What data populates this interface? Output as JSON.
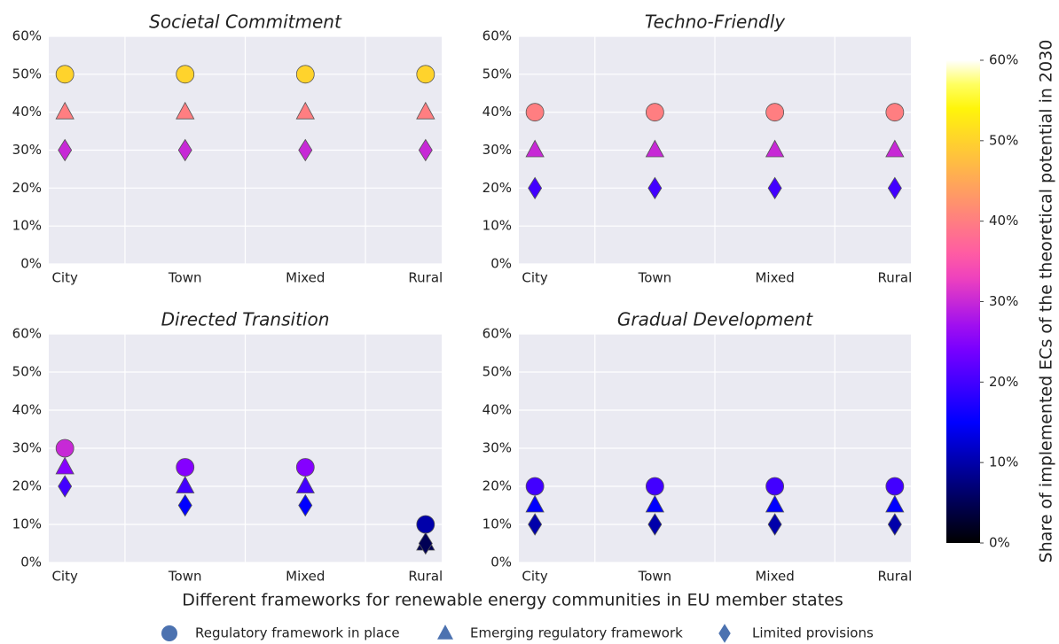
{
  "figure": {
    "xlabel": "Different frameworks for renewable energy communities in EU member states",
    "legend": {
      "color": "#4c72b0"
    },
    "colorbar": {
      "label": "Share of implemented ECs of the theoretical potential in 2030",
      "colormap": "gnuplot2",
      "lim": [
        0,
        60
      ],
      "ticks": [
        {
          "value": 0,
          "label": "0%"
        },
        {
          "value": 10,
          "label": "10%"
        },
        {
          "value": 20,
          "label": "20%"
        },
        {
          "value": 30,
          "label": "30%"
        },
        {
          "value": 40,
          "label": "40%"
        },
        {
          "value": 50,
          "label": "50%"
        },
        {
          "value": 60,
          "label": "60%"
        }
      ]
    }
  },
  "chart_data": [
    {
      "type": "scatter",
      "title": "Societal Commitment",
      "categories": [
        "City",
        "Town",
        "Mixed",
        "Rural"
      ],
      "series": [
        {
          "name": "Regulatory framework in place",
          "marker": "circle",
          "values": [
            50,
            50,
            50,
            50
          ]
        },
        {
          "name": "Emerging regulatory framework",
          "marker": "triangle",
          "values": [
            40,
            40,
            40,
            40
          ]
        },
        {
          "name": "Limited provisions",
          "marker": "diamond",
          "values": [
            30,
            30,
            30,
            30
          ]
        }
      ],
      "ylim": [
        0,
        60
      ],
      "grid": true,
      "yticks": [
        {
          "value": 0,
          "label": "0%"
        },
        {
          "value": 10,
          "label": "10%"
        },
        {
          "value": 20,
          "label": "20%"
        },
        {
          "value": 30,
          "label": "30%"
        },
        {
          "value": 40,
          "label": "40%"
        },
        {
          "value": 50,
          "label": "50%"
        },
        {
          "value": 60,
          "label": "60%"
        }
      ]
    },
    {
      "type": "scatter",
      "title": "Techno-Friendly",
      "categories": [
        "City",
        "Town",
        "Mixed",
        "Rural"
      ],
      "series": [
        {
          "name": "Regulatory framework in place",
          "marker": "circle",
          "values": [
            40,
            40,
            40,
            40
          ]
        },
        {
          "name": "Emerging regulatory framework",
          "marker": "triangle",
          "values": [
            30,
            30,
            30,
            30
          ]
        },
        {
          "name": "Limited provisions",
          "marker": "diamond",
          "values": [
            20,
            20,
            20,
            20
          ]
        }
      ],
      "ylim": [
        0,
        60
      ],
      "grid": true,
      "yticks": [
        {
          "value": 0,
          "label": "0%"
        },
        {
          "value": 10,
          "label": "10%"
        },
        {
          "value": 20,
          "label": "20%"
        },
        {
          "value": 30,
          "label": "30%"
        },
        {
          "value": 40,
          "label": "40%"
        },
        {
          "value": 50,
          "label": "50%"
        },
        {
          "value": 60,
          "label": "60%"
        }
      ]
    },
    {
      "type": "scatter",
      "title": "Directed Transition",
      "categories": [
        "City",
        "Town",
        "Mixed",
        "Rural"
      ],
      "series": [
        {
          "name": "Regulatory framework in place",
          "marker": "circle",
          "values": [
            30,
            25,
            25,
            10
          ]
        },
        {
          "name": "Emerging regulatory framework",
          "marker": "triangle",
          "values": [
            25,
            20,
            20,
            5
          ]
        },
        {
          "name": "Limited provisions",
          "marker": "diamond",
          "values": [
            20,
            15,
            15,
            5
          ]
        }
      ],
      "ylim": [
        0,
        60
      ],
      "grid": true,
      "yticks": [
        {
          "value": 0,
          "label": "0%"
        },
        {
          "value": 10,
          "label": "10%"
        },
        {
          "value": 20,
          "label": "20%"
        },
        {
          "value": 30,
          "label": "30%"
        },
        {
          "value": 40,
          "label": "40%"
        },
        {
          "value": 50,
          "label": "50%"
        },
        {
          "value": 60,
          "label": "60%"
        }
      ]
    },
    {
      "type": "scatter",
      "title": "Gradual Development",
      "categories": [
        "City",
        "Town",
        "Mixed",
        "Rural"
      ],
      "series": [
        {
          "name": "Regulatory framework in place",
          "marker": "circle",
          "values": [
            20,
            20,
            20,
            20
          ]
        },
        {
          "name": "Emerging regulatory framework",
          "marker": "triangle",
          "values": [
            15,
            15,
            15,
            15
          ]
        },
        {
          "name": "Limited provisions",
          "marker": "diamond",
          "values": [
            10,
            10,
            10,
            10
          ]
        }
      ],
      "ylim": [
        0,
        60
      ],
      "grid": true,
      "yticks": [
        {
          "value": 0,
          "label": "0%"
        },
        {
          "value": 10,
          "label": "10%"
        },
        {
          "value": 20,
          "label": "20%"
        },
        {
          "value": 30,
          "label": "30%"
        },
        {
          "value": 40,
          "label": "40%"
        },
        {
          "value": 50,
          "label": "50%"
        },
        {
          "value": 60,
          "label": "60%"
        }
      ]
    }
  ]
}
